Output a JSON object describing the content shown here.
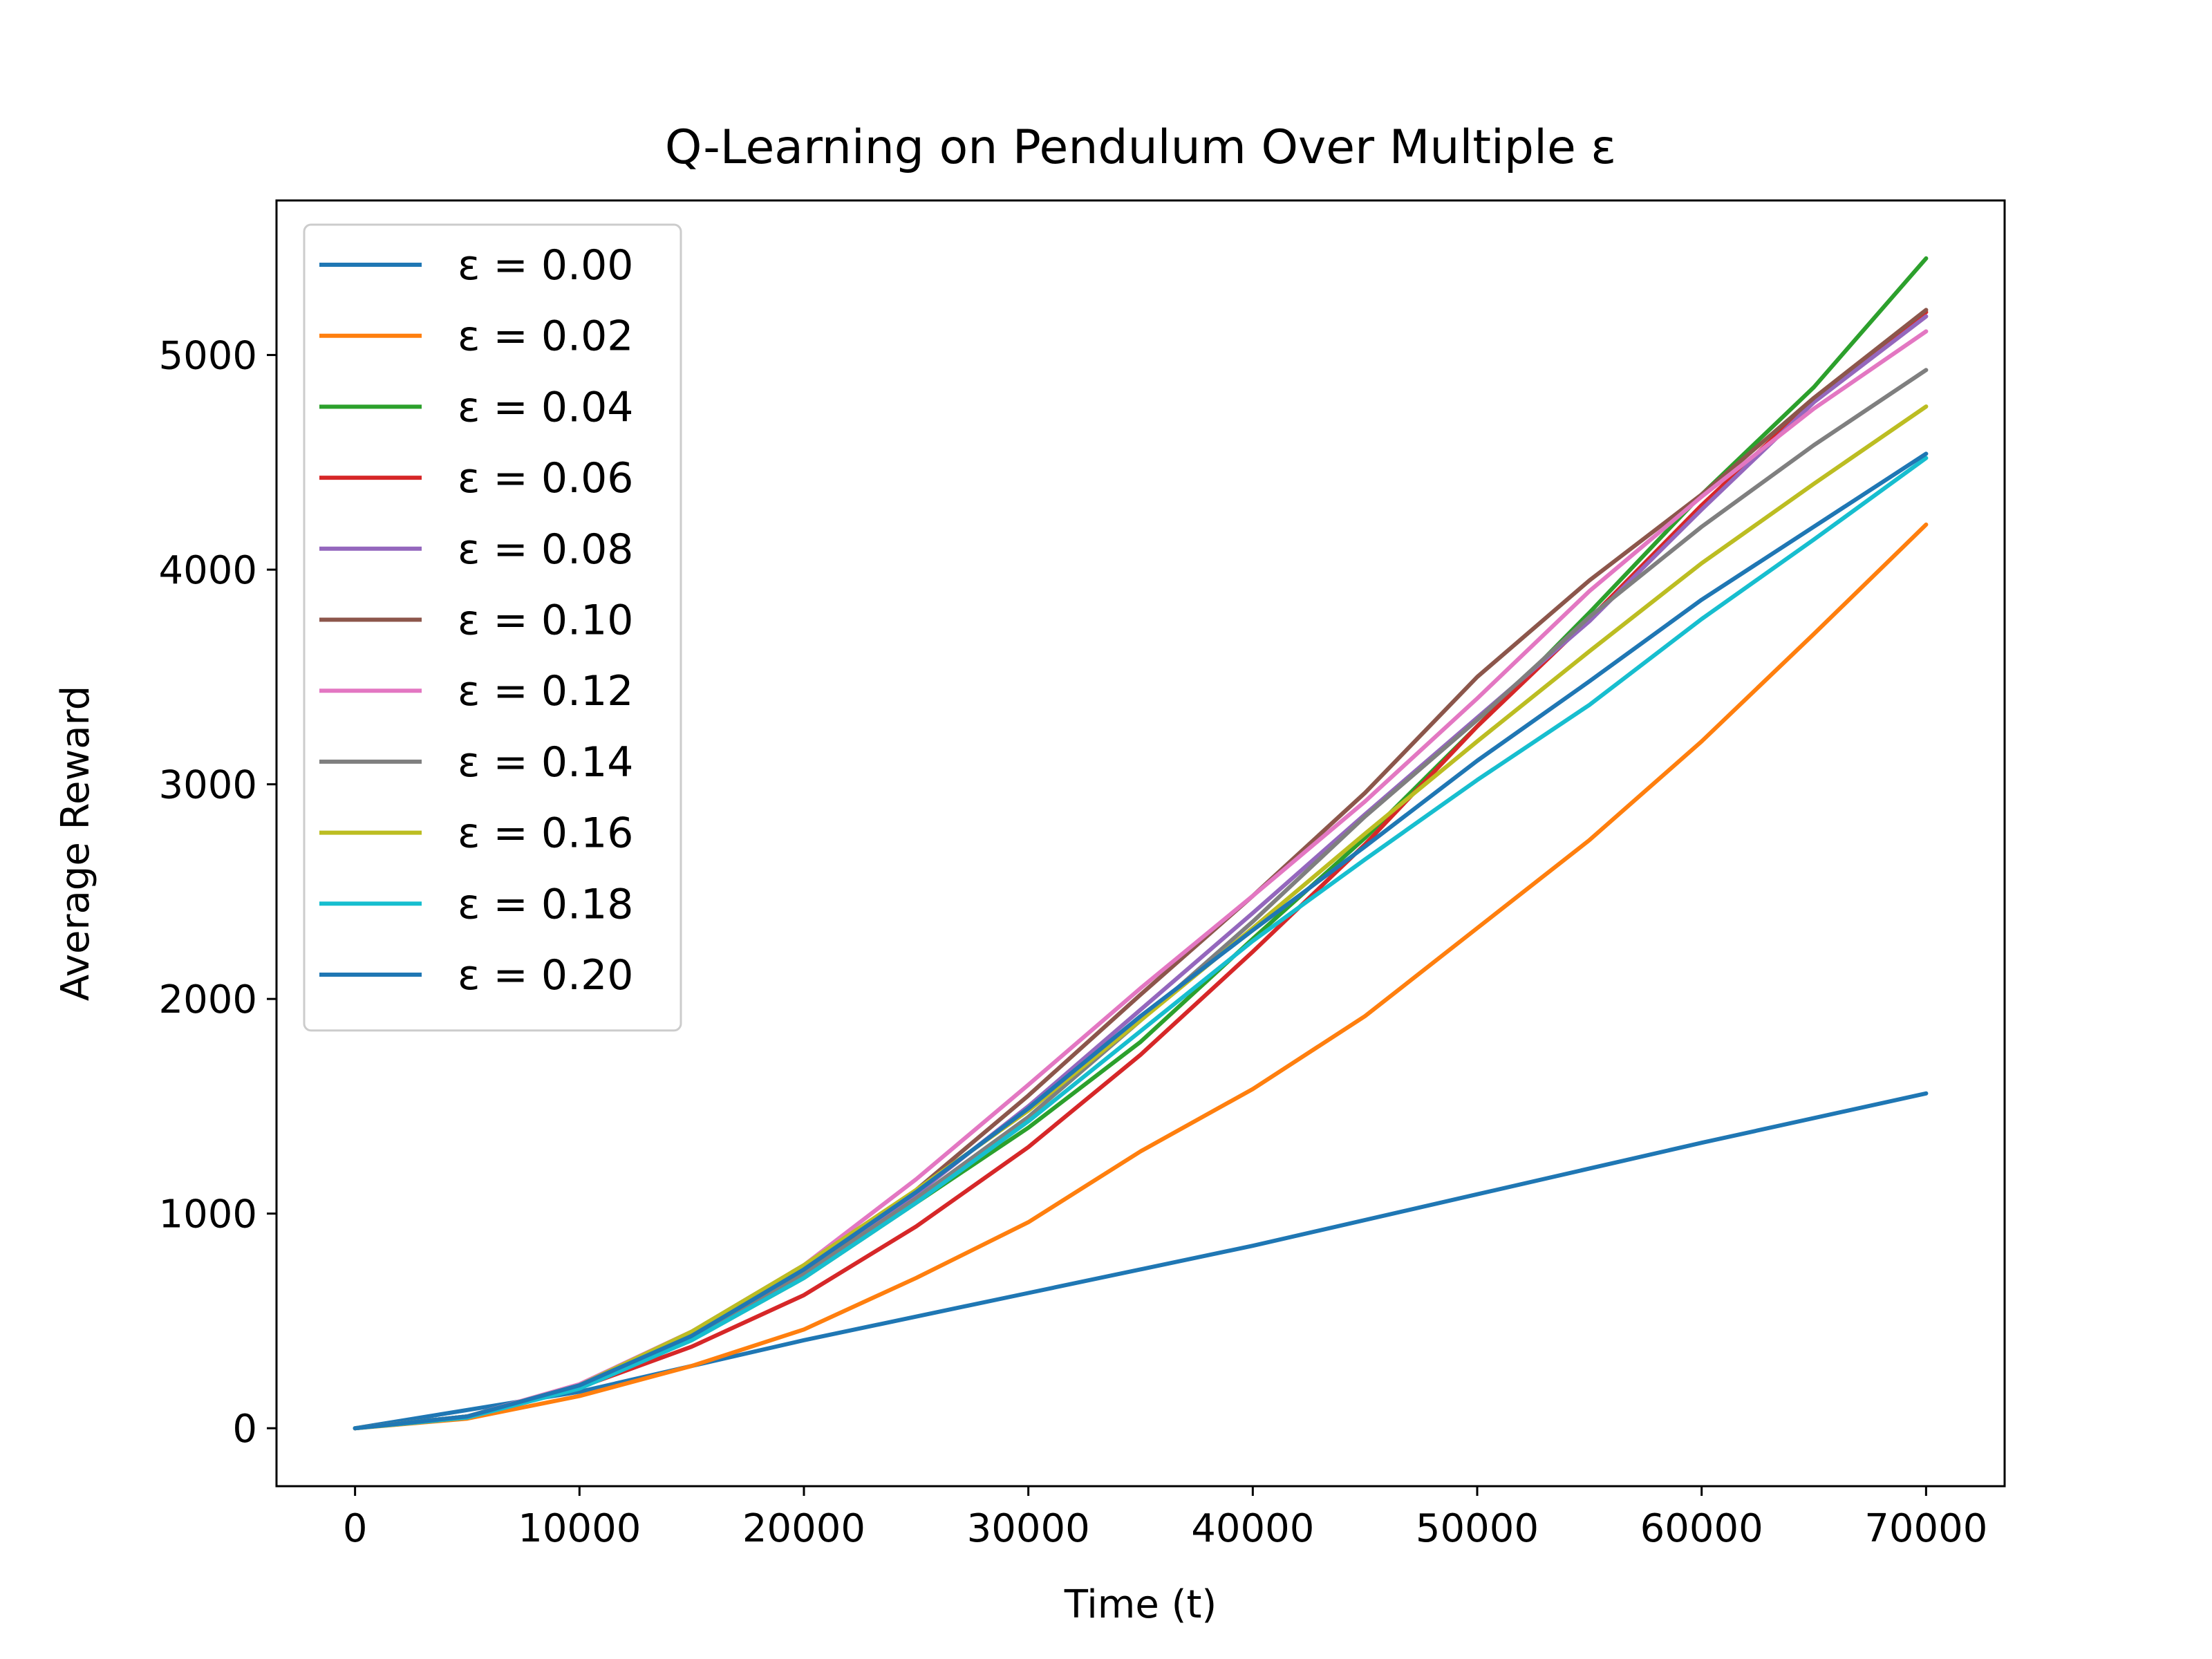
{
  "chart_data": {
    "type": "line",
    "title": "Q-Learning on Pendulum Over Multiple ε",
    "xlabel": "Time (t)",
    "ylabel": "Average Reward",
    "xlim": [
      -3500,
      73500
    ],
    "ylim": [
      -270,
      5720
    ],
    "xticks": [
      0,
      10000,
      20000,
      30000,
      40000,
      50000,
      60000,
      70000
    ],
    "xtick_labels": [
      "0",
      "10000",
      "20000",
      "30000",
      "40000",
      "50000",
      "60000",
      "70000"
    ],
    "yticks": [
      0,
      1000,
      2000,
      3000,
      4000,
      5000
    ],
    "ytick_labels": [
      "0",
      "1000",
      "2000",
      "3000",
      "4000",
      "5000"
    ],
    "grid": false,
    "legend_position": "top-left",
    "series": [
      {
        "name": "ε = 0.00",
        "color": "#1f77b4",
        "x": [
          0,
          10000,
          20000,
          30000,
          40000,
          50000,
          60000,
          70000
        ],
        "y": [
          0,
          170,
          410,
          630,
          850,
          1090,
          1330,
          1560
        ]
      },
      {
        "name": "ε = 0.02",
        "color": "#ff7f0e",
        "x": [
          0,
          5000,
          10000,
          15000,
          20000,
          25000,
          30000,
          35000,
          40000,
          45000,
          50000,
          55000,
          60000,
          65000,
          70000
        ],
        "y": [
          0,
          45,
          150,
          290,
          460,
          700,
          960,
          1290,
          1580,
          1920,
          2330,
          2740,
          3200,
          3700,
          4210
        ]
      },
      {
        "name": "ε = 0.04",
        "color": "#2ca02c",
        "x": [
          0,
          5000,
          10000,
          15000,
          20000,
          25000,
          30000,
          35000,
          40000,
          45000,
          50000,
          55000,
          60000,
          65000,
          70000
        ],
        "y": [
          0,
          50,
          190,
          410,
          700,
          1050,
          1400,
          1800,
          2280,
          2750,
          3270,
          3800,
          4350,
          4850,
          5450
        ]
      },
      {
        "name": "ε = 0.06",
        "color": "#d62728",
        "x": [
          0,
          5000,
          10000,
          15000,
          20000,
          25000,
          30000,
          35000,
          40000,
          45000,
          50000,
          55000,
          60000,
          65000,
          70000
        ],
        "y": [
          0,
          55,
          190,
          380,
          620,
          940,
          1310,
          1740,
          2220,
          2720,
          3270,
          3770,
          4300,
          4790,
          5200
        ]
      },
      {
        "name": "ε = 0.08",
        "color": "#9467bd",
        "x": [
          0,
          5000,
          10000,
          15000,
          20000,
          25000,
          30000,
          35000,
          40000,
          45000,
          50000,
          55000,
          60000,
          65000,
          70000
        ],
        "y": [
          0,
          55,
          200,
          430,
          730,
          1090,
          1500,
          1950,
          2400,
          2860,
          3310,
          3760,
          4280,
          4780,
          5180
        ]
      },
      {
        "name": "ε = 0.10",
        "color": "#8c564b",
        "x": [
          0,
          5000,
          10000,
          15000,
          20000,
          25000,
          30000,
          35000,
          40000,
          45000,
          50000,
          55000,
          60000,
          65000,
          70000
        ],
        "y": [
          0,
          55,
          200,
          430,
          730,
          1110,
          1550,
          2020,
          2480,
          2960,
          3500,
          3950,
          4350,
          4800,
          5210
        ]
      },
      {
        "name": "ε = 0.12",
        "color": "#e377c2",
        "x": [
          0,
          5000,
          10000,
          15000,
          20000,
          25000,
          30000,
          35000,
          40000,
          45000,
          50000,
          55000,
          60000,
          65000,
          70000
        ],
        "y": [
          0,
          55,
          205,
          450,
          760,
          1160,
          1600,
          2050,
          2480,
          2920,
          3400,
          3900,
          4340,
          4750,
          5110
        ]
      },
      {
        "name": "ε = 0.14",
        "color": "#7f7f7f",
        "x": [
          0,
          5000,
          10000,
          15000,
          20000,
          25000,
          30000,
          35000,
          40000,
          45000,
          50000,
          55000,
          60000,
          65000,
          70000
        ],
        "y": [
          0,
          55,
          195,
          420,
          720,
          1070,
          1450,
          1900,
          2360,
          2850,
          3300,
          3780,
          4200,
          4580,
          4930
        ]
      },
      {
        "name": "ε = 0.16",
        "color": "#bcbd22",
        "x": [
          0,
          5000,
          10000,
          15000,
          20000,
          25000,
          30000,
          35000,
          40000,
          45000,
          50000,
          55000,
          60000,
          65000,
          70000
        ],
        "y": [
          0,
          55,
          200,
          450,
          760,
          1110,
          1480,
          1900,
          2330,
          2770,
          3200,
          3620,
          4030,
          4400,
          4760
        ]
      },
      {
        "name": "ε = 0.18",
        "color": "#17becf",
        "x": [
          0,
          5000,
          10000,
          15000,
          20000,
          25000,
          30000,
          35000,
          40000,
          45000,
          50000,
          55000,
          60000,
          65000,
          70000
        ],
        "y": [
          0,
          50,
          185,
          410,
          700,
          1050,
          1430,
          1850,
          2270,
          2650,
          3020,
          3370,
          3770,
          4140,
          4520
        ]
      },
      {
        "name": "ε = 0.20",
        "color": "#1f77b4",
        "x": [
          0,
          5000,
          10000,
          15000,
          20000,
          25000,
          30000,
          35000,
          40000,
          45000,
          50000,
          55000,
          60000,
          65000,
          70000
        ],
        "y": [
          0,
          55,
          200,
          430,
          740,
          1100,
          1490,
          1920,
          2320,
          2710,
          3110,
          3480,
          3860,
          4200,
          4540
        ]
      }
    ]
  }
}
